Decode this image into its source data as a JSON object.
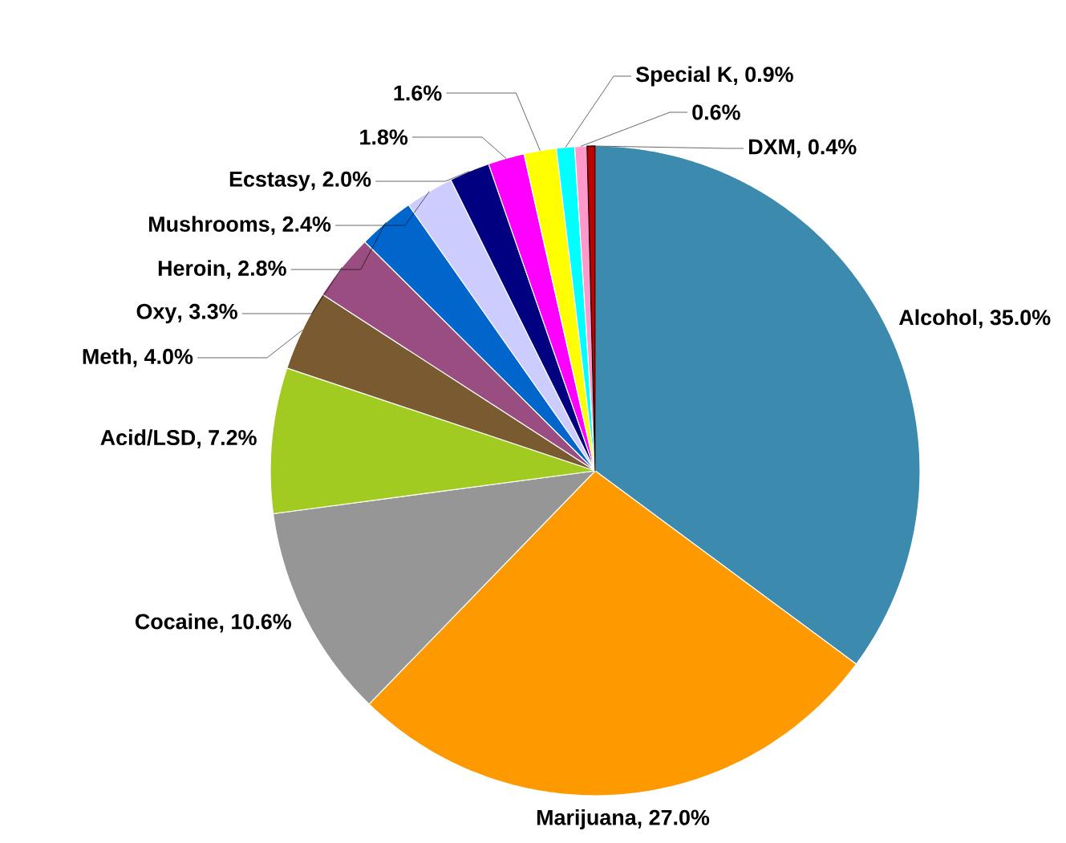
{
  "chart_data": {
    "type": "pie",
    "categories": [
      "Alcohol",
      "Marijuana",
      "Cocaine",
      "Acid/LSD",
      "Meth",
      "Oxy",
      "Heroin",
      "Mushrooms",
      "Ecstasy",
      null,
      null,
      "Special K",
      null,
      "DXM"
    ],
    "values": [
      35.0,
      27.0,
      10.6,
      7.2,
      4.0,
      3.3,
      2.8,
      2.4,
      2.0,
      1.8,
      1.6,
      0.9,
      0.6,
      0.4
    ],
    "value_labels": [
      ", 35.0%",
      ", 27.0%",
      ", 10.6%",
      ", 7.2%",
      ", 4.0%",
      ", 3.3%",
      ", 2.8%",
      ", 2.4%",
      ", 2.0%",
      "1.8%",
      "1.6%",
      ", 0.9%",
      "0.6%",
      ", 0.4%"
    ],
    "colors": [
      "#3c8aae",
      "#ff9900",
      "#969696",
      "#a2cb22",
      "#7a5a30",
      "#994d80",
      "#0066cc",
      "#ccccff",
      "#000080",
      "#ff00ff",
      "#ffff00",
      "#00ffff",
      "#ff99cc",
      "#c00000"
    ]
  }
}
